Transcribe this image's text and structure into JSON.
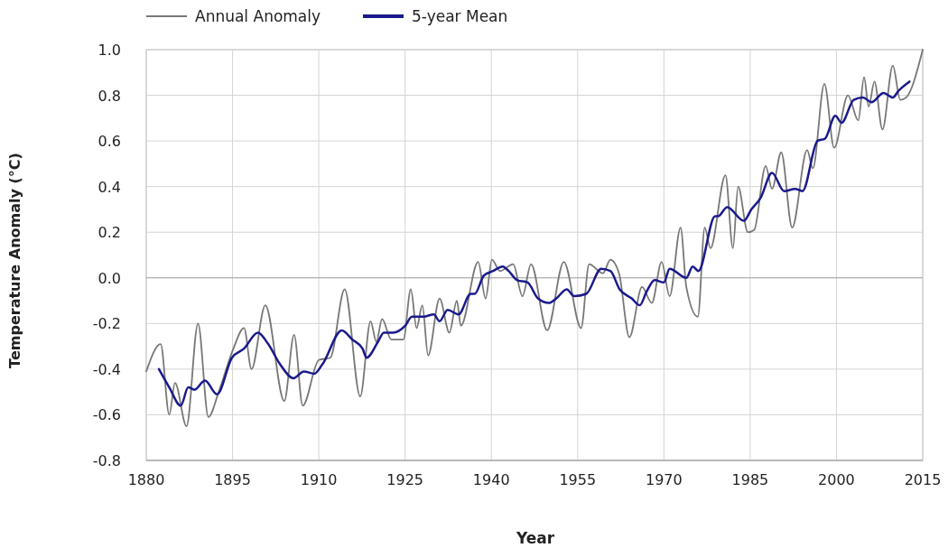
{
  "chart_data": {
    "type": "line",
    "xlabel": "Year",
    "ylabel": "Temperature Anomaly (°C)",
    "xlim": [
      1880,
      2015
    ],
    "xticks": [
      1880,
      1895,
      1910,
      1925,
      1940,
      1955,
      1970,
      1985,
      2000,
      2015
    ],
    "ylim": [
      -0.8,
      1.0
    ],
    "yticks": [
      {
        "value": -0.8,
        "label": "-0.8"
      },
      {
        "value": -0.6,
        "label": "-0.6"
      },
      {
        "value": -0.4,
        "label": "-0.4"
      },
      {
        "value": -0.2,
        "label": "-0.2"
      },
      {
        "value": 0,
        "label": "0.0"
      },
      {
        "value": 0.2,
        "label": "0.2"
      },
      {
        "value": 0.4,
        "label": "0.4"
      },
      {
        "value": 0.6,
        "label": "0.6"
      },
      {
        "value": 0.8,
        "label": "0.8"
      },
      {
        "value": 1,
        "label": "1.0"
      }
    ],
    "grid": true,
    "legend": "top left",
    "marker": "none",
    "line_style": "solid",
    "series": [
      {
        "name": "Annual Anomaly",
        "color": "#777777",
        "x": [
          1880,
          1882.5,
          1884,
          1885,
          1887,
          1889,
          1890.8,
          1892.6,
          1895,
          1897,
          1898.3,
          1900.7,
          1904,
          1905.7,
          1907.2,
          1910,
          1912,
          1914.5,
          1917.2,
          1919,
          1920,
          1921,
          1922.6,
          1924.7,
          1926,
          1927,
          1928,
          1929,
          1931,
          1932.7,
          1934,
          1934.7,
          1937.7,
          1939,
          1940.1,
          1941.5,
          1943.8,
          1945.4,
          1946.9,
          1949.7,
          1952.6,
          1955.6,
          1957,
          1959.4,
          1960.7,
          1962.2,
          1964,
          1966.2,
          1967.9,
          1969.6,
          1971,
          1972.9,
          1973.9,
          1975.9,
          1977.1,
          1978.1,
          1980.7,
          1982,
          1982.9,
          1984.6,
          1985.7,
          1987.7,
          1988.8,
          1990.4,
          1992.3,
          1994.9,
          1995.9,
          1997.9,
          1999.6,
          2002,
          2003.8,
          2004.8,
          2005.6,
          2006.6,
          2008,
          2009.8,
          2011.1,
          2012.1,
          2015
        ],
        "values": [
          -0.41,
          -0.29,
          -0.6,
          -0.46,
          -0.65,
          -0.2,
          -0.61,
          -0.5,
          -0.32,
          -0.22,
          -0.4,
          -0.12,
          -0.54,
          -0.25,
          -0.56,
          -0.36,
          -0.35,
          -0.05,
          -0.52,
          -0.19,
          -0.28,
          -0.18,
          -0.27,
          -0.27,
          -0.05,
          -0.22,
          -0.12,
          -0.34,
          -0.09,
          -0.24,
          -0.1,
          -0.21,
          0.07,
          -0.09,
          0.08,
          0.03,
          0.06,
          -0.08,
          0.06,
          -0.23,
          0.07,
          -0.22,
          0.06,
          0.02,
          0.08,
          0.02,
          -0.26,
          -0.04,
          -0.11,
          0.07,
          -0.08,
          0.22,
          -0.04,
          -0.17,
          0.22,
          0.13,
          0.45,
          0.13,
          0.4,
          0.2,
          0.21,
          0.49,
          0.39,
          0.55,
          0.22,
          0.56,
          0.48,
          0.85,
          0.57,
          0.8,
          0.69,
          0.88,
          0.75,
          0.86,
          0.65,
          0.93,
          0.78,
          0.79,
          1.0
        ]
      },
      {
        "name": "5-year Mean",
        "color": "#1a1a8c",
        "x": [
          1882.2,
          1884,
          1886,
          1887.3,
          1888.4,
          1890.2,
          1892.3,
          1894.9,
          1897,
          1899.4,
          1901.2,
          1903.3,
          1905.6,
          1907.4,
          1909.2,
          1910.6,
          1914,
          1915.8,
          1917.6,
          1918.3,
          1920.3,
          1921.3,
          1922.9,
          1925,
          1926.2,
          1928.2,
          1930,
          1931,
          1932.4,
          1934.3,
          1936.4,
          1937.1,
          1938.7,
          1940.3,
          1942,
          1943,
          1944.5,
          1946.3,
          1948.1,
          1950,
          1951.3,
          1953.1,
          1954.4,
          1956.5,
          1959.1,
          1960.7,
          1962.3,
          1964.4,
          1965.8,
          1967,
          1968.4,
          1970,
          1971,
          1973.9,
          1975,
          1976,
          1978.9,
          1979.4,
          1981,
          1983.9,
          1985.2,
          1986.8,
          1988.8,
          1990.9,
          1992.8,
          1994.1,
          1996.7,
          1998,
          1999.8,
          2000.9,
          2003,
          2004.6,
          2006.1,
          2008.2,
          2009.8,
          2010.8,
          2012.7
        ],
        "values": [
          -0.4,
          -0.48,
          -0.56,
          -0.48,
          -0.49,
          -0.45,
          -0.51,
          -0.35,
          -0.31,
          -0.24,
          -0.29,
          -0.38,
          -0.44,
          -0.41,
          -0.42,
          -0.38,
          -0.23,
          -0.27,
          -0.31,
          -0.35,
          -0.28,
          -0.24,
          -0.24,
          -0.21,
          -0.17,
          -0.17,
          -0.16,
          -0.19,
          -0.14,
          -0.16,
          -0.07,
          -0.07,
          0.01,
          0.03,
          0.05,
          0.03,
          -0.01,
          -0.02,
          -0.09,
          -0.11,
          -0.09,
          -0.05,
          -0.08,
          -0.07,
          0.04,
          0.03,
          -0.05,
          -0.09,
          -0.12,
          -0.06,
          -0.01,
          -0.02,
          0.04,
          0.0,
          0.05,
          0.03,
          0.27,
          0.27,
          0.31,
          0.25,
          0.3,
          0.35,
          0.46,
          0.38,
          0.39,
          0.38,
          0.6,
          0.61,
          0.71,
          0.68,
          0.78,
          0.79,
          0.77,
          0.81,
          0.79,
          0.82,
          0.86
        ]
      }
    ]
  }
}
